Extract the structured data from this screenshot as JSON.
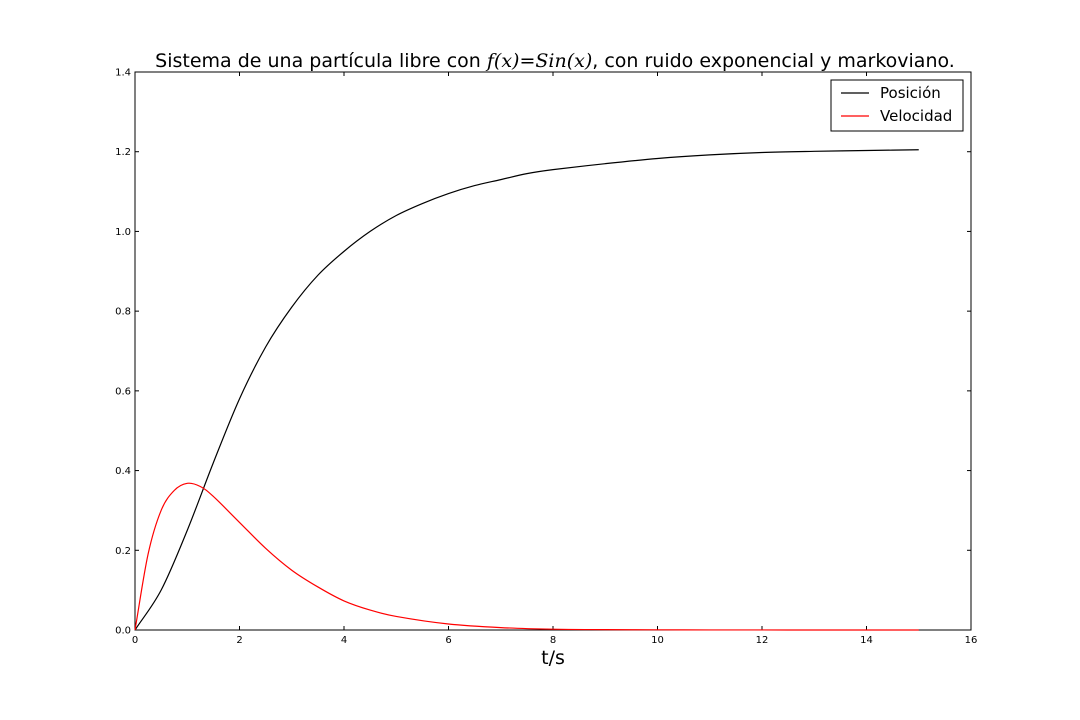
{
  "chart_data": {
    "type": "line",
    "title_parts": {
      "before": "Sistema de una partícula libre con ",
      "math": "f(x)=Sin(x)",
      "after": ", con ruido exponencial y markoviano."
    },
    "xlabel": "t/s",
    "ylabel": "",
    "xlim": [
      0,
      16
    ],
    "ylim": [
      0,
      1.4
    ],
    "x_ticks": [
      "0",
      "2",
      "4",
      "6",
      "8",
      "10",
      "12",
      "14",
      "16"
    ],
    "y_ticks": [
      "0.0",
      "0.2",
      "0.4",
      "0.6",
      "0.8",
      "1.0",
      "1.2",
      "1.4"
    ],
    "grid": false,
    "legend_position": "top-right",
    "series": [
      {
        "name": "Posición",
        "color": "#000000",
        "x": [
          0,
          0.5,
          1.0,
          1.5,
          2.0,
          2.5,
          3.0,
          3.5,
          4.0,
          4.5,
          5.0,
          5.5,
          6.0,
          6.5,
          7.0,
          7.5,
          8.0,
          9.0,
          10.0,
          11.0,
          12.0,
          13.0,
          14.0,
          15.0
        ],
        "y": [
          0.0,
          0.1,
          0.25,
          0.42,
          0.58,
          0.71,
          0.81,
          0.89,
          0.95,
          1.0,
          1.04,
          1.07,
          1.095,
          1.115,
          1.13,
          1.145,
          1.155,
          1.17,
          1.183,
          1.192,
          1.198,
          1.201,
          1.203,
          1.205
        ]
      },
      {
        "name": "Velocidad",
        "color": "#ff0000",
        "x": [
          0,
          0.25,
          0.5,
          0.75,
          1.0,
          1.25,
          1.5,
          2.0,
          2.5,
          3.0,
          3.5,
          4.0,
          4.5,
          5.0,
          6.0,
          7.0,
          8.0,
          9.0,
          10.0,
          11.0,
          12.0,
          13.0,
          14.0,
          15.0
        ],
        "y": [
          0.0,
          0.19,
          0.3,
          0.35,
          0.368,
          0.36,
          0.335,
          0.27,
          0.205,
          0.15,
          0.108,
          0.073,
          0.05,
          0.034,
          0.015,
          0.006,
          0.002,
          0.001,
          0.0005,
          0.0002,
          0.0001,
          0.0,
          0.0,
          0.0
        ]
      }
    ]
  }
}
